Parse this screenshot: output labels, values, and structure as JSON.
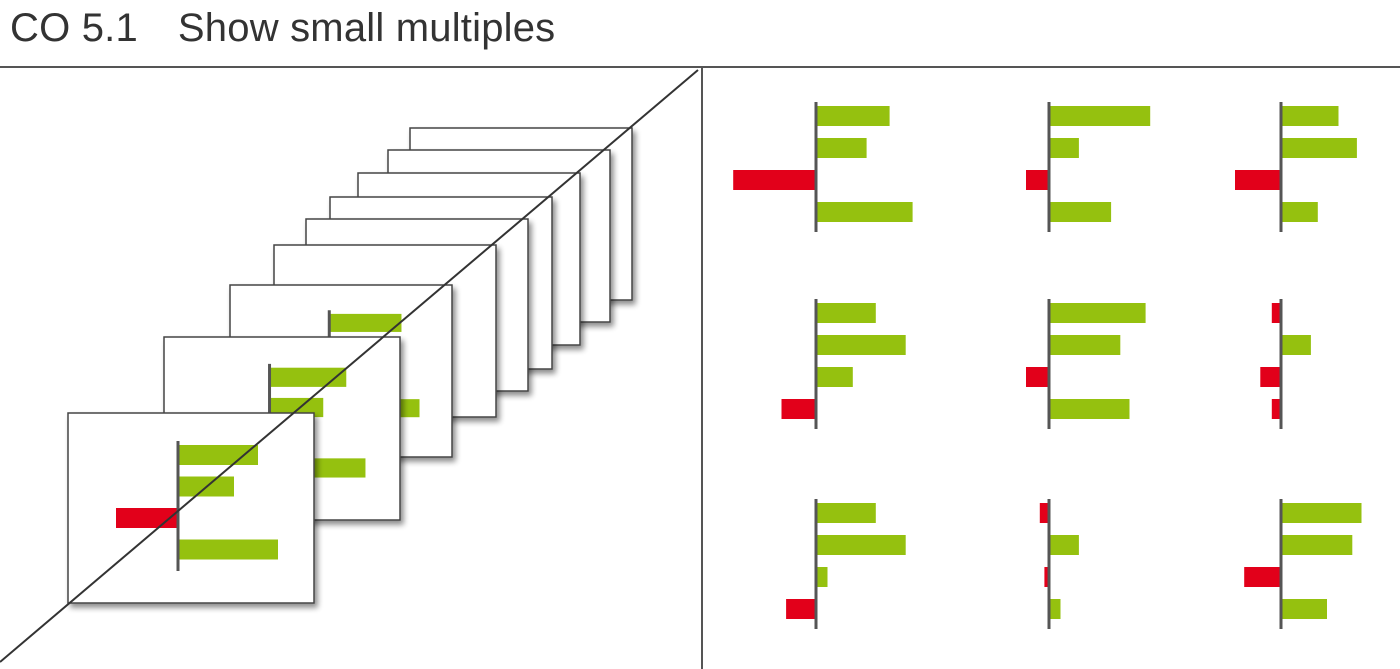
{
  "header": {
    "code": "CO 5.1",
    "title": "Show small multiples"
  },
  "colors": {
    "positive": "#95c10f",
    "negative": "#e2001a",
    "axis": "#555555",
    "frame_line": "#555555",
    "card_border": "#444444",
    "card_fill": "#ffffff"
  },
  "left_panel": {
    "description": "stack of overlapping chart cards receding diagonally",
    "card_count": 9,
    "front_chart_values": [
      4,
      2.8,
      -3.1,
      5
    ]
  },
  "chart_data": {
    "type": "bar",
    "orientation": "horizontal",
    "layout": "3x3 small multiples",
    "charts": [
      {
        "values": [
          3.2,
          2.2,
          -3.6,
          4.2
        ]
      },
      {
        "values": [
          4.4,
          1.3,
          -1.0,
          2.7
        ]
      },
      {
        "values": [
          2.5,
          3.3,
          -2.0,
          1.6
        ]
      },
      {
        "values": [
          2.6,
          3.9,
          1.6,
          -1.5
        ]
      },
      {
        "values": [
          4.2,
          3.1,
          -1.0,
          3.5
        ]
      },
      {
        "values": [
          -0.4,
          1.3,
          -0.9,
          -0.4
        ]
      },
      {
        "values": [
          2.6,
          3.9,
          0.5,
          -1.3
        ]
      },
      {
        "values": [
          -0.4,
          1.3,
          -0.2,
          0.5
        ]
      },
      {
        "values": [
          3.5,
          3.1,
          -1.6,
          2.0
        ]
      }
    ]
  }
}
